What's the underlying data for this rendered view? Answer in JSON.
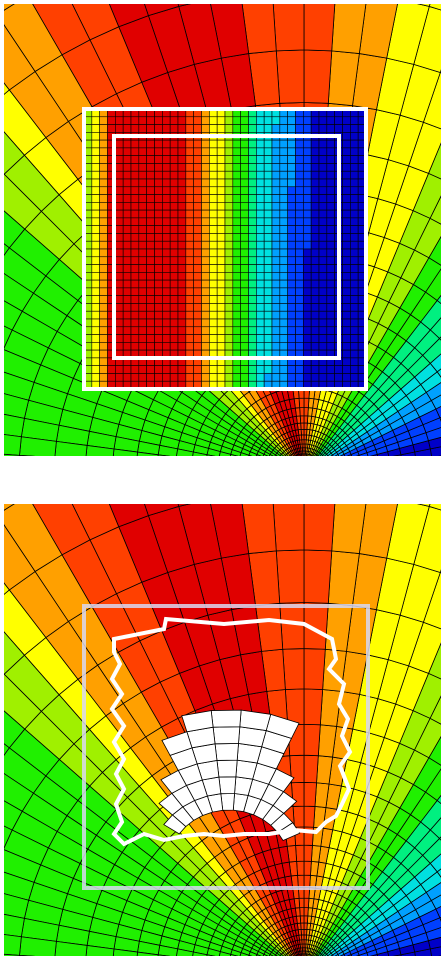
{
  "colors": {
    "scale": [
      "#0000c8",
      "#0040ff",
      "#00a0ff",
      "#00e0e0",
      "#00f080",
      "#20f000",
      "#a0f000",
      "#ffff00",
      "#ffa000",
      "#ff4000",
      "#e00000"
    ],
    "grid_line": "#000000",
    "outline": "#ffffff",
    "void": "#ffffff"
  },
  "panels": [
    {
      "name": "panel-top",
      "variant": "overlay-grid"
    },
    {
      "name": "panel-bottom",
      "variant": "deformed-region"
    }
  ]
}
